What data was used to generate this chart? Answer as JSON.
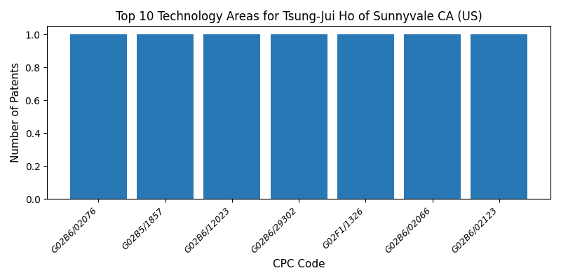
{
  "title": "Top 10 Technology Areas for Tsung-Jui Ho of Sunnyvale CA (US)",
  "xlabel": "CPC Code",
  "ylabel": "Number of Patents",
  "categories": [
    "G02B6/02076",
    "G02B5/1857",
    "G02B6/12023",
    "G02B6/29302",
    "G02F1/1326",
    "G02B6/02066",
    "G02B6/02123"
  ],
  "values": [
    1,
    1,
    1,
    1,
    1,
    1,
    1
  ],
  "bar_color": "#2878b5",
  "bar_width": 0.85,
  "ylim": [
    0,
    1.05
  ],
  "figsize": [
    8,
    4
  ],
  "dpi": 100,
  "tick_fontsize": 9,
  "label_fontsize": 11,
  "title_fontsize": 12
}
